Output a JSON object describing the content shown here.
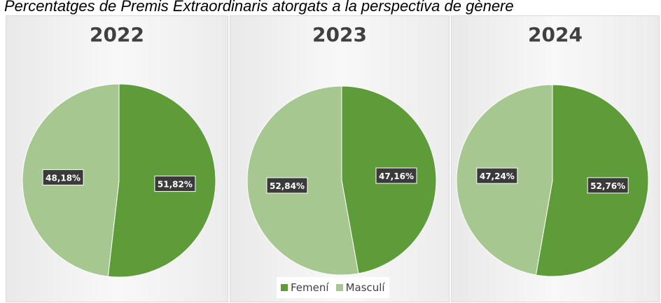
{
  "title": "Percentatges de Premis Extraordinaris atorgats a la perspectiva de gènere",
  "colors": {
    "femeni": "#5e9c3a",
    "masculi": "#a6c890",
    "label_bg": "#3a3a3a"
  },
  "legend": [
    {
      "label": "Femení",
      "color": "#5e9c3a"
    },
    {
      "label": "Masculí",
      "color": "#a6c890"
    }
  ],
  "chart_data": [
    {
      "type": "pie",
      "title": "2022",
      "categories": [
        "Femení",
        "Masculí"
      ],
      "values": [
        51.82,
        48.18
      ],
      "labels": [
        "51,82%",
        "48,18%"
      ]
    },
    {
      "type": "pie",
      "title": "2023",
      "categories": [
        "Femení",
        "Masculí"
      ],
      "values": [
        47.16,
        52.84
      ],
      "labels": [
        "47,16%",
        "52,84%"
      ]
    },
    {
      "type": "pie",
      "title": "2024",
      "categories": [
        "Femení",
        "Masculí"
      ],
      "values": [
        52.76,
        47.24
      ],
      "labels": [
        "52,76%",
        "47,24%"
      ]
    }
  ]
}
